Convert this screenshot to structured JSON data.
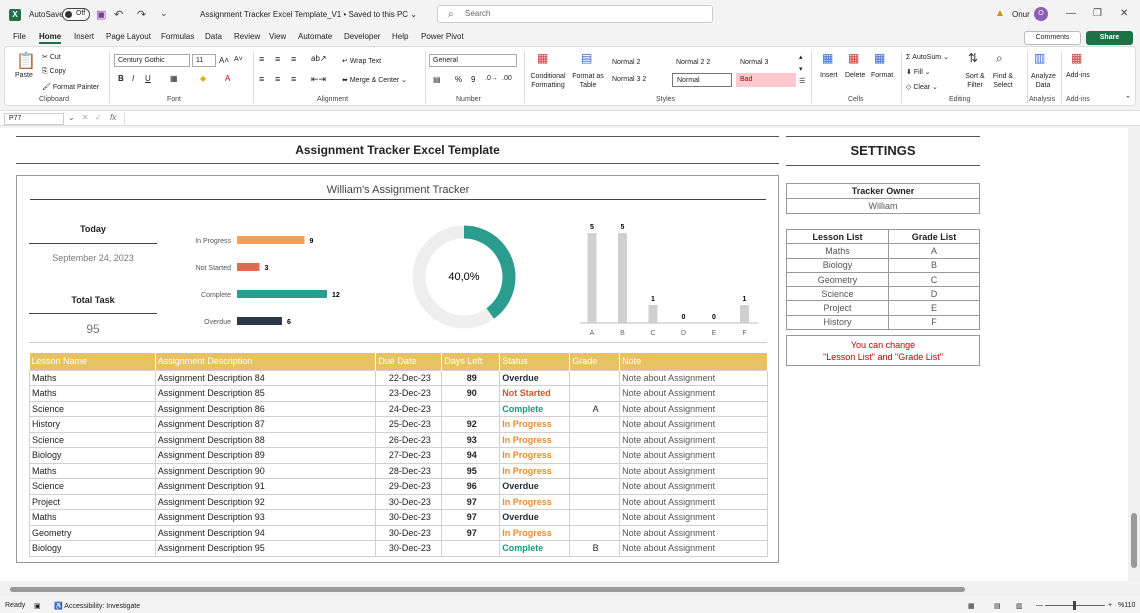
{
  "titlebar": {
    "autosave_label": "AutoSave",
    "autosave_state": "Off",
    "doc_title": "Assignment Tracker Excel Template_V1 • Saved to this PC ⌄",
    "search_placeholder": "Search",
    "user_name": "Onur",
    "user_initial": "O"
  },
  "menu": [
    "File",
    "Home",
    "Insert",
    "Page Layout",
    "Formulas",
    "Data",
    "Review",
    "View",
    "Automate",
    "Developer",
    "Help",
    "Power Pivot"
  ],
  "comments_label": "Comments",
  "share_label": "Share",
  "ribbon": {
    "clipboard": {
      "paste": "Paste",
      "cut": "Cut",
      "copy": "Copy",
      "format_painter": "Format Painter",
      "label": "Clipboard"
    },
    "font": {
      "name": "Century Gothic",
      "size": "11",
      "label": "Font"
    },
    "alignment": {
      "wrap": "Wrap Text",
      "merge": "Merge & Center",
      "label": "Alignment"
    },
    "number": {
      "format": "General",
      "label": "Number"
    },
    "styles": {
      "conditional": "Conditional Formatting",
      "format_table": "Format as Table",
      "cells": [
        "Normal 2",
        "Normal 2 2",
        "Normal 3",
        "Normal 3 2",
        "Normal",
        "Bad"
      ],
      "label": "Styles"
    },
    "cells": {
      "insert": "Insert",
      "delete": "Delete",
      "format": "Format",
      "label": "Cells"
    },
    "editing": {
      "autosum": "AutoSum",
      "fill": "Fill",
      "clear": "Clear",
      "sort": "Sort & Filter",
      "find": "Find & Select",
      "label": "Editing"
    },
    "analysis": {
      "analyze": "Analyze Data",
      "label": "Analysis"
    },
    "addins": {
      "addins": "Add-ins",
      "label": "Add-ins"
    }
  },
  "formula": {
    "cell_ref": "P77",
    "fx": "fx"
  },
  "sheet": {
    "main_title": "Assignment Tracker Excel Template",
    "dash_title": "William's Assignment Tracker",
    "today_label": "Today",
    "today_value": "September 24, 2023",
    "total_label": "Total Task",
    "total_value": "95",
    "donut_value": "40,0%",
    "settings_title": "SETTINGS",
    "owner_label": "Tracker Owner",
    "owner_value": "William",
    "lesson_header": "Lesson List",
    "grade_header": "Grade List",
    "lessons": [
      "Maths",
      "Biology",
      "Geometry",
      "Science",
      "Project",
      "History"
    ],
    "grades": [
      "A",
      "B",
      "C",
      "D",
      "E",
      "F"
    ],
    "change_note_1": "You can change",
    "change_note_2": "\"Lesson List\" and \"Grade List\""
  },
  "chart_data": [
    {
      "type": "bar",
      "orientation": "horizontal",
      "categories": [
        "In Progress",
        "Not Started",
        "Complete",
        "Overdue"
      ],
      "values": [
        9,
        3,
        12,
        6
      ],
      "colors": [
        "#f0a05a",
        "#e06a50",
        "#2a9d8f",
        "#2b3a4a"
      ]
    },
    {
      "type": "pie",
      "variant": "donut",
      "values": [
        40,
        60
      ],
      "colors": [
        "#2a9d8f",
        "#eeeeee"
      ]
    },
    {
      "type": "bar",
      "categories": [
        "A",
        "B",
        "C",
        "D",
        "E",
        "F"
      ],
      "values": [
        5,
        5,
        1,
        0,
        0,
        1
      ],
      "colors": [
        "#d0d0d0"
      ]
    }
  ],
  "table": {
    "headers": [
      "Lesson Name",
      "Assignment Description",
      "Due Date",
      "Days Left",
      "Status",
      "Grade",
      "Note"
    ],
    "rows": [
      {
        "lesson": "Maths",
        "desc": "Assignment Description 84",
        "due": "22-Dec-23",
        "days": "89",
        "status": "Overdue",
        "grade": "",
        "note": "Note about Assignment"
      },
      {
        "lesson": "Maths",
        "desc": "Assignment Description 85",
        "due": "23-Dec-23",
        "days": "90",
        "status": "Not Started",
        "grade": "",
        "note": "Note about Assignment"
      },
      {
        "lesson": "Science",
        "desc": "Assignment Description 86",
        "due": "24-Dec-23",
        "days": "",
        "status": "Complete",
        "grade": "A",
        "note": "Note about Assignment"
      },
      {
        "lesson": "History",
        "desc": "Assignment Description 87",
        "due": "25-Dec-23",
        "days": "92",
        "status": "In Progress",
        "grade": "",
        "note": "Note about Assignment"
      },
      {
        "lesson": "Science",
        "desc": "Assignment Description 88",
        "due": "26-Dec-23",
        "days": "93",
        "status": "In Progress",
        "grade": "",
        "note": "Note about Assignment"
      },
      {
        "lesson": "Biology",
        "desc": "Assignment Description 89",
        "due": "27-Dec-23",
        "days": "94",
        "status": "In Progress",
        "grade": "",
        "note": "Note about Assignment"
      },
      {
        "lesson": "Maths",
        "desc": "Assignment Description 90",
        "due": "28-Dec-23",
        "days": "95",
        "status": "In Progress",
        "grade": "",
        "note": "Note about Assignment"
      },
      {
        "lesson": "Science",
        "desc": "Assignment Description 91",
        "due": "29-Dec-23",
        "days": "96",
        "status": "Overdue",
        "grade": "",
        "note": "Note about Assignment"
      },
      {
        "lesson": "Project",
        "desc": "Assignment Description 92",
        "due": "30-Dec-23",
        "days": "97",
        "status": "In Progress",
        "grade": "",
        "note": "Note about Assignment"
      },
      {
        "lesson": "Maths",
        "desc": "Assignment Description 93",
        "due": "30-Dec-23",
        "days": "97",
        "status": "Overdue",
        "grade": "",
        "note": "Note about Assignment"
      },
      {
        "lesson": "Geometry",
        "desc": "Assignment Description 94",
        "due": "30-Dec-23",
        "days": "97",
        "status": "In Progress",
        "grade": "",
        "note": "Note about Assignment"
      },
      {
        "lesson": "Biology",
        "desc": "Assignment Description 95",
        "due": "30-Dec-23",
        "days": "",
        "status": "Complete",
        "grade": "B",
        "note": "Note about Assignment"
      }
    ]
  },
  "status_colors": {
    "Overdue": "#1f2d3d",
    "Not Started": "#e0502e",
    "Complete": "#1a9a7a",
    "In Progress": "#f08a2c"
  },
  "statusbar": {
    "ready": "Ready",
    "accessibility": "Accessibility: Investigate",
    "zoom": "%110"
  }
}
